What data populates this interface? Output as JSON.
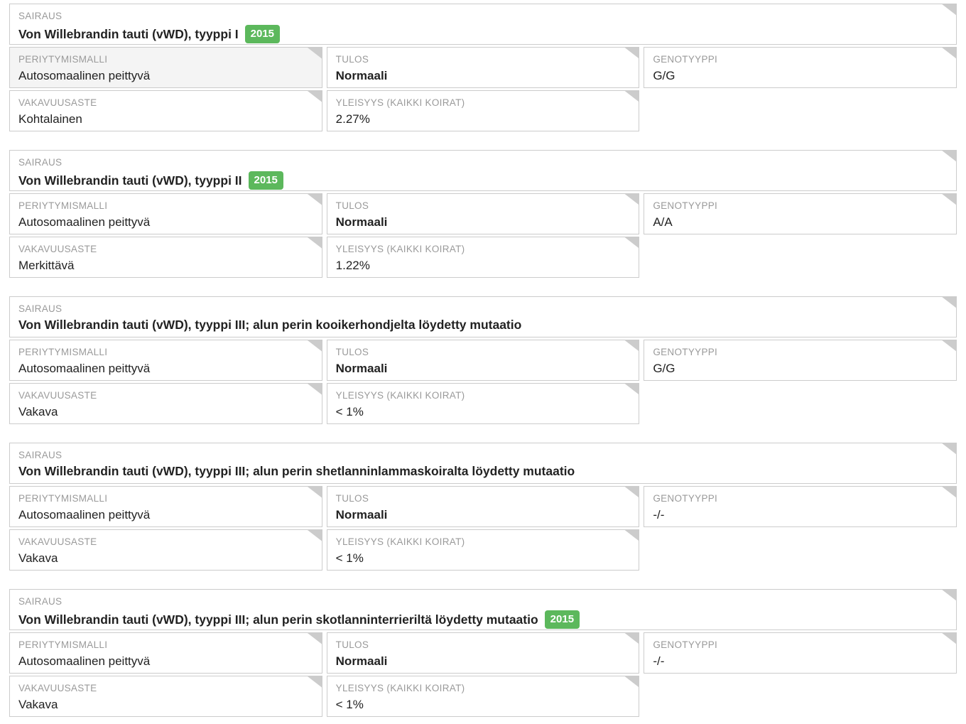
{
  "labels": {
    "disease": "SAIRAUS",
    "inheritance": "PERIYTYMISMALLI",
    "result": "TULOS",
    "genotype": "GENOTYYPPI",
    "severity": "VAKAVUUSASTE",
    "frequency": "YLEISYYS (KAIKKI KOIRAT)"
  },
  "colors": {
    "badge_green": "#5cb85c",
    "cell_border": "#cccccc",
    "fold_corner": "#cccccc",
    "label_text": "#9a9a9a",
    "value_text": "#222222",
    "highlight_bg": "#f4f4f4"
  },
  "cards": [
    {
      "disease": "Von Willebrandin tauti (vWD), tyyppi I",
      "badge": "2015",
      "inheritance": "Autosomaalinen peittyvä",
      "result": "Normaali",
      "genotype": "G/G",
      "severity": "Kohtalainen",
      "frequency": "2.27%"
    },
    {
      "disease": "Von Willebrandin tauti (vWD), tyyppi II",
      "badge": "2015",
      "inheritance": "Autosomaalinen peittyvä",
      "result": "Normaali",
      "genotype": "A/A",
      "severity": "Merkittävä",
      "frequency": "1.22%"
    },
    {
      "disease": "Von Willebrandin tauti (vWD), tyyppi III; alun perin kooikerhondjelta löydetty mutaatio",
      "badge": "",
      "inheritance": "Autosomaalinen peittyvä",
      "result": "Normaali",
      "genotype": "G/G",
      "severity": "Vakava",
      "frequency": "< 1%"
    },
    {
      "disease": "Von Willebrandin tauti (vWD), tyyppi III; alun perin shetlanninlammaskoiralta löydetty mutaatio",
      "badge": "",
      "inheritance": "Autosomaalinen peittyvä",
      "result": "Normaali",
      "genotype": "-/-",
      "severity": "Vakava",
      "frequency": "< 1%"
    },
    {
      "disease": "Von Willebrandin tauti (vWD), tyyppi III; alun perin skotlanninterrieriltä löydetty mutaatio",
      "badge": "2015",
      "inheritance": "Autosomaalinen peittyvä",
      "result": "Normaali",
      "genotype": "-/-",
      "severity": "Vakava",
      "frequency": "< 1%"
    }
  ]
}
